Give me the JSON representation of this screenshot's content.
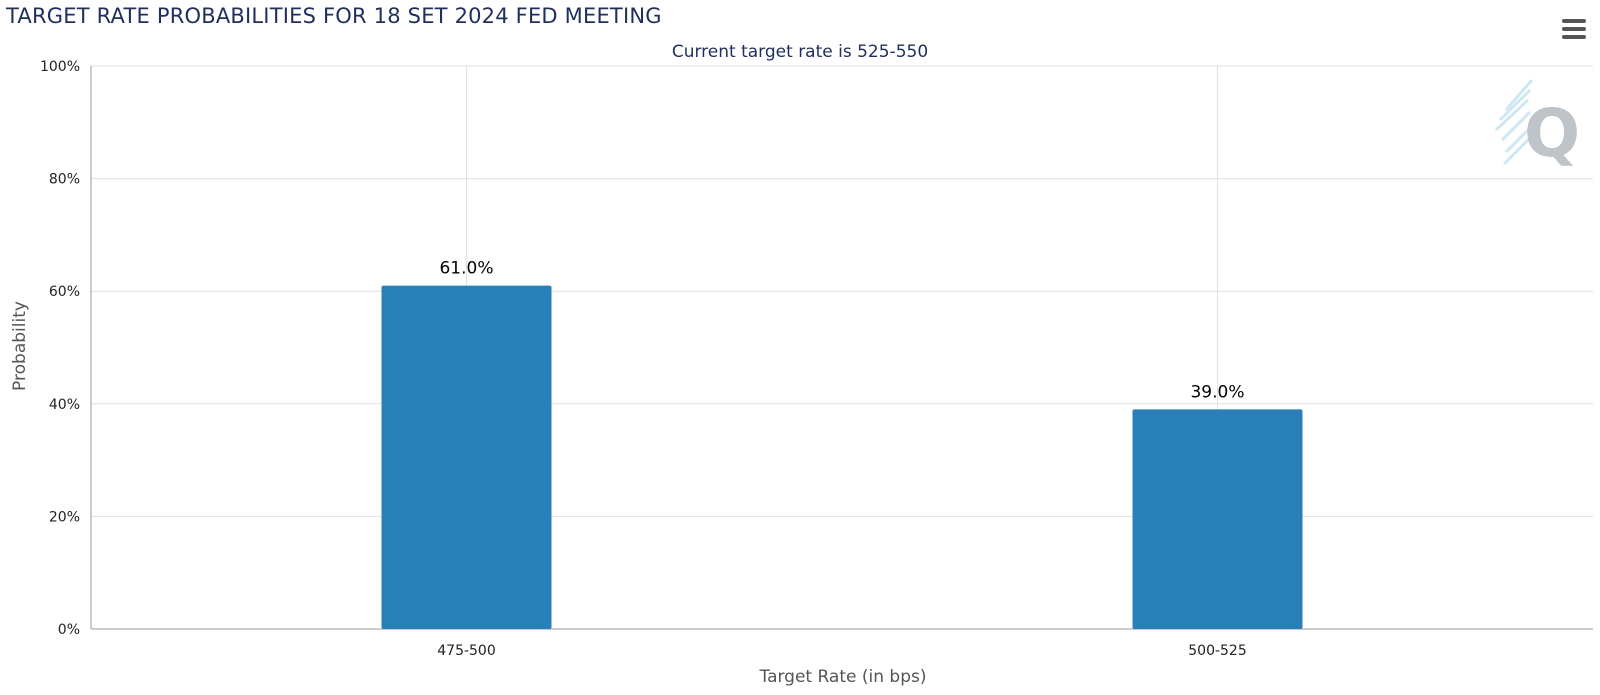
{
  "header": {
    "title": "TARGET RATE PROBABILITIES FOR 18 SET 2024 FED MEETING",
    "menu_icon": "hamburger-menu-icon",
    "watermark_icon": "q-logo-watermark"
  },
  "colors": {
    "bar": "#2980b9",
    "title": "#1f2e5c",
    "grid": "#e0e0e0",
    "axis": "#999999"
  },
  "chart_data": {
    "type": "bar",
    "subtitle": "Current target rate is 525-550",
    "categories": [
      "475-500",
      "500-525"
    ],
    "values": [
      61.0,
      39.0
    ],
    "data_labels": [
      "61.0%",
      "39.0%"
    ],
    "xlabel": "Target Rate (in bps)",
    "ylabel": "Probability",
    "ylim": [
      0,
      100
    ],
    "yticks": [
      0,
      20,
      40,
      60,
      80,
      100
    ],
    "ytick_labels": [
      "0%",
      "20%",
      "40%",
      "60%",
      "80%",
      "100%"
    ],
    "grid": true,
    "legend": "none"
  }
}
